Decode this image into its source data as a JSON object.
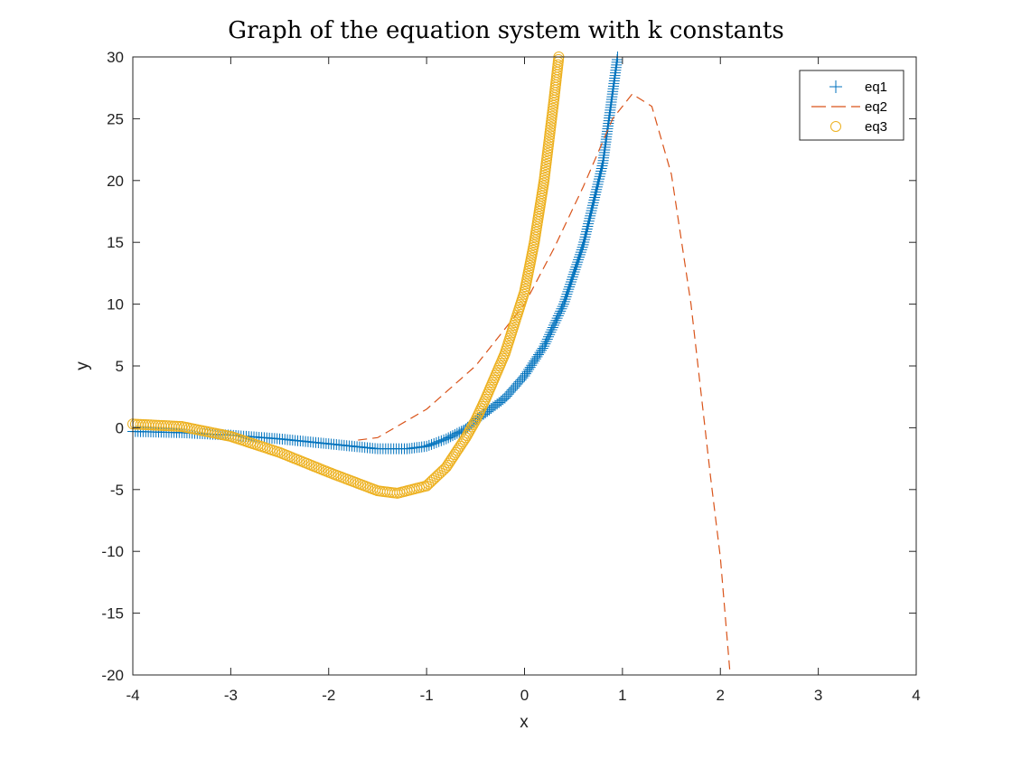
{
  "chart_data": {
    "type": "line",
    "title": "Graph of the equation system with k constants",
    "xlabel": "x",
    "ylabel": "y",
    "xlim": [
      -4,
      4
    ],
    "ylim": [
      -20,
      30
    ],
    "xticks": [
      -4,
      -3,
      -2,
      -1,
      0,
      1,
      2,
      3,
      4
    ],
    "yticks": [
      -20,
      -15,
      -10,
      -5,
      0,
      5,
      10,
      15,
      20,
      25,
      30
    ],
    "xtick_labels": [
      "-4",
      "-3",
      "-2",
      "-1",
      "0",
      "1",
      "2",
      "3",
      "4"
    ],
    "ytick_labels": [
      "-20",
      "-15",
      "-10",
      "-5",
      "0",
      "5",
      "10",
      "15",
      "20",
      "25",
      "30"
    ],
    "grid": false,
    "legend_position": "top-right",
    "series": [
      {
        "name": "eq1",
        "marker": "plus",
        "color": "#0072BD",
        "x": [
          -4.0,
          -3.5,
          -3.0,
          -2.5,
          -2.0,
          -1.5,
          -1.2,
          -1.0,
          -0.8,
          -0.6,
          -0.5,
          -0.4,
          -0.2,
          0.0,
          0.2,
          0.4,
          0.6,
          0.8,
          0.95
        ],
        "y": [
          -0.3,
          -0.4,
          -0.6,
          -0.9,
          -1.3,
          -1.7,
          -1.7,
          -1.5,
          -0.9,
          -0.1,
          0.6,
          1.2,
          2.4,
          4.2,
          6.6,
          10.0,
          14.8,
          21.4,
          30.0
        ]
      },
      {
        "name": "eq2",
        "marker": "dashed-line",
        "color": "#D95319",
        "x": [
          -1.7,
          -1.5,
          -1.0,
          -0.5,
          0.0,
          0.3,
          0.6,
          0.9,
          1.1,
          1.3,
          1.5,
          1.7,
          1.9,
          2.0,
          2.1
        ],
        "y": [
          -1.0,
          -0.8,
          1.5,
          5.0,
          10.0,
          14.5,
          19.5,
          25.0,
          27.0,
          26.0,
          20.5,
          10.0,
          -4.0,
          -10.5,
          -20.0
        ]
      },
      {
        "name": "eq3",
        "marker": "circle",
        "color": "#EDB120",
        "x": [
          -4.0,
          -3.5,
          -3.0,
          -2.5,
          -2.0,
          -1.5,
          -1.3,
          -1.0,
          -0.8,
          -0.6,
          -0.5,
          -0.4,
          -0.2,
          0.0,
          0.1,
          0.2,
          0.3,
          0.35
        ],
        "y": [
          0.3,
          0.1,
          -0.7,
          -2.0,
          -3.6,
          -5.1,
          -5.3,
          -4.7,
          -3.2,
          -0.8,
          0.6,
          2.3,
          6.0,
          11.0,
          15.0,
          20.0,
          26.5,
          30.0
        ]
      }
    ]
  }
}
